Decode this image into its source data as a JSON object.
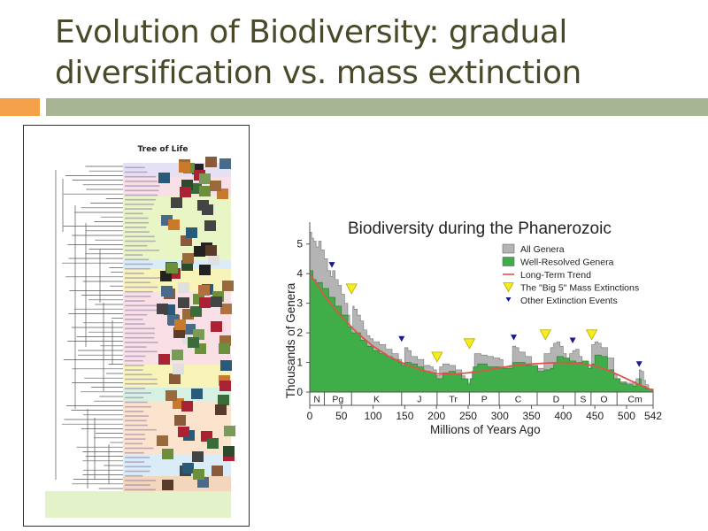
{
  "slide": {
    "title_line1": "Evolution of Biodiversity: gradual",
    "title_line2": "diversification vs. mass extinction",
    "accent_colors": {
      "orange": "#f4a14a",
      "green": "#a7b594",
      "title": "#4a4a2a"
    }
  },
  "tree_of_life": {
    "title": "Tree of Life",
    "groups": [
      {
        "label": "Bacteria/Archaea",
        "color": "#e6e0f5"
      },
      {
        "label": "Protists",
        "color": "#f9dfe6"
      },
      {
        "label": "Plants",
        "color": "#e8f5c4"
      },
      {
        "label": "Fungi",
        "color": "#d9ecf7"
      },
      {
        "label": "Invertebrates",
        "color": "#f8f3b9"
      },
      {
        "label": "Arthropods",
        "color": "#f9dfe6"
      },
      {
        "label": "Molluscs/Worms",
        "color": "#f8f3b9"
      },
      {
        "label": "Echinoderms",
        "color": "#d6f1e2"
      },
      {
        "label": "Fish",
        "color": "#fbe3cd"
      },
      {
        "label": "Reptiles/Birds",
        "color": "#d9ecf7"
      },
      {
        "label": "Mammals",
        "color": "#f3d6bc"
      }
    ]
  },
  "chart_data": {
    "type": "area",
    "title": "Biodiversity during the Phanerozoic",
    "xlabel": "Millions of Years Ago",
    "ylabel": "Thousands of Genera",
    "xlim": [
      0,
      542
    ],
    "ylim": [
      0,
      5.5
    ],
    "x_ticks": [
      "0",
      "50",
      "100",
      "150",
      "200",
      "250",
      "300",
      "350",
      "400",
      "450",
      "500",
      "542"
    ],
    "x_tick_values": [
      0,
      50,
      100,
      150,
      200,
      250,
      300,
      350,
      400,
      450,
      500,
      542
    ],
    "y_ticks": [
      "0",
      "1",
      "2",
      "3",
      "4",
      "5"
    ],
    "y_tick_values": [
      0,
      1,
      2,
      3,
      4,
      5
    ],
    "legend_position": "top-right",
    "legend": [
      {
        "label": "All Genera",
        "kind": "box",
        "color": "#b4b4b4"
      },
      {
        "label": "Well-Resolved Genera",
        "kind": "box",
        "color": "#3fae49"
      },
      {
        "label": "Long-Term Trend",
        "kind": "line",
        "color": "#e0534a"
      },
      {
        "label": "The \"Big 5\" Mass Extinctions",
        "kind": "triangle",
        "color": "#f5ee1a"
      },
      {
        "label": "Other Extinction Events",
        "kind": "small-triangle",
        "color": "#1a1a8c"
      }
    ],
    "periods": [
      {
        "label": "N",
        "start": 0,
        "end": 23
      },
      {
        "label": "Pg",
        "start": 23,
        "end": 66
      },
      {
        "label": "K",
        "start": 66,
        "end": 145
      },
      {
        "label": "J",
        "start": 145,
        "end": 201
      },
      {
        "label": "Tr",
        "start": 201,
        "end": 252
      },
      {
        "label": "P",
        "start": 252,
        "end": 299
      },
      {
        "label": "C",
        "start": 299,
        "end": 359
      },
      {
        "label": "D",
        "start": 359,
        "end": 419
      },
      {
        "label": "S",
        "start": 419,
        "end": 444
      },
      {
        "label": "O",
        "start": 444,
        "end": 485
      },
      {
        "label": "Cm",
        "start": 485,
        "end": 542
      }
    ],
    "series": [
      {
        "name": "All Genera",
        "x": [
          0,
          3,
          6,
          10,
          14,
          18,
          23,
          28,
          33,
          36,
          40,
          45,
          50,
          55,
          60,
          63,
          64,
          66,
          68,
          70,
          75,
          80,
          85,
          90,
          95,
          100,
          110,
          120,
          130,
          140,
          145,
          150,
          155,
          160,
          170,
          180,
          190,
          195,
          200,
          205,
          210,
          220,
          230,
          240,
          245,
          250,
          252,
          256,
          260,
          270,
          280,
          290,
          300,
          305,
          315,
          320,
          325,
          330,
          340,
          350,
          355,
          360,
          370,
          380,
          385,
          390,
          395,
          400,
          405,
          410,
          415,
          420,
          425,
          430,
          440,
          443,
          445,
          450,
          455,
          460,
          470,
          480,
          485,
          490,
          500,
          510,
          515,
          520,
          523,
          527,
          530,
          535,
          542
        ],
        "values": [
          5.4,
          5.2,
          5.1,
          4.9,
          5.1,
          4.8,
          4.5,
          4.1,
          3.9,
          4.1,
          3.8,
          3.6,
          3.3,
          3.0,
          2.6,
          1.6,
          1.4,
          2.0,
          2.9,
          2.8,
          2.6,
          2.4,
          2.1,
          1.9,
          1.8,
          1.7,
          1.6,
          1.45,
          1.3,
          1.1,
          0.95,
          1.5,
          1.4,
          1.2,
          1.1,
          0.9,
          0.85,
          0.75,
          0.55,
          0.85,
          0.95,
          0.9,
          0.75,
          0.55,
          0.4,
          0.3,
          0.3,
          0.7,
          1.3,
          1.25,
          1.2,
          1.15,
          1.1,
          0.85,
          0.9,
          1.55,
          1.5,
          1.35,
          1.2,
          0.85,
          0.75,
          0.8,
          1.3,
          1.5,
          1.65,
          1.7,
          1.55,
          1.3,
          1.05,
          1.3,
          1.4,
          1.45,
          1.2,
          1.0,
          0.7,
          0.85,
          1.6,
          1.7,
          1.65,
          1.5,
          1.15,
          0.6,
          0.45,
          0.35,
          0.3,
          0.35,
          0.45,
          0.75,
          0.7,
          0.4,
          0.25,
          0.1,
          0.05
        ]
      },
      {
        "name": "Well-Resolved Genera",
        "x": [
          0,
          5,
          10,
          20,
          30,
          40,
          50,
          60,
          66,
          70,
          80,
          90,
          100,
          110,
          120,
          130,
          140,
          145,
          150,
          160,
          170,
          180,
          190,
          200,
          210,
          220,
          230,
          240,
          250,
          253,
          258,
          265,
          280,
          300,
          320,
          340,
          360,
          370,
          380,
          385,
          390,
          400,
          410,
          420,
          430,
          440,
          445,
          450,
          460,
          470,
          480,
          490,
          500,
          510,
          515,
          520,
          523,
          530,
          542
        ],
        "values": [
          4.1,
          3.8,
          3.7,
          3.5,
          3.2,
          2.9,
          2.6,
          2.2,
          2.0,
          2.0,
          1.75,
          1.55,
          1.4,
          1.3,
          1.2,
          1.1,
          1.0,
          0.9,
          1.0,
          0.95,
          0.85,
          0.7,
          0.65,
          0.45,
          0.65,
          0.7,
          0.6,
          0.45,
          0.25,
          0.45,
          0.85,
          0.95,
          0.85,
          0.8,
          1.0,
          0.9,
          0.7,
          0.75,
          0.8,
          1.0,
          1.2,
          1.15,
          1.05,
          1.0,
          1.05,
          0.8,
          0.95,
          1.25,
          1.2,
          0.75,
          0.45,
          0.3,
          0.25,
          0.2,
          0.25,
          0.45,
          0.2,
          0.1,
          0.0
        ]
      },
      {
        "name": "Long-Term Trend",
        "x": [
          0,
          25,
          50,
          75,
          100,
          125,
          150,
          175,
          200,
          225,
          250,
          275,
          300,
          325,
          350,
          375,
          400,
          425,
          450,
          475,
          500,
          520,
          542
        ],
        "values": [
          4.0,
          3.2,
          2.55,
          2.0,
          1.55,
          1.2,
          0.95,
          0.75,
          0.62,
          0.6,
          0.65,
          0.72,
          0.82,
          0.9,
          0.95,
          0.98,
          1.0,
          0.97,
          0.88,
          0.7,
          0.45,
          0.25,
          0.05
        ]
      }
    ],
    "big5_extinctions": [
      {
        "x": 66,
        "y": 3.5
      },
      {
        "x": 201,
        "y": 1.2
      },
      {
        "x": 252,
        "y": 1.65
      },
      {
        "x": 372,
        "y": 1.95
      },
      {
        "x": 445,
        "y": 1.95
      }
    ],
    "other_extinctions": [
      {
        "x": 35,
        "y": 4.3
      },
      {
        "x": 145,
        "y": 1.8
      },
      {
        "x": 322,
        "y": 1.85
      },
      {
        "x": 415,
        "y": 1.75
      },
      {
        "x": 520,
        "y": 0.95
      }
    ]
  }
}
